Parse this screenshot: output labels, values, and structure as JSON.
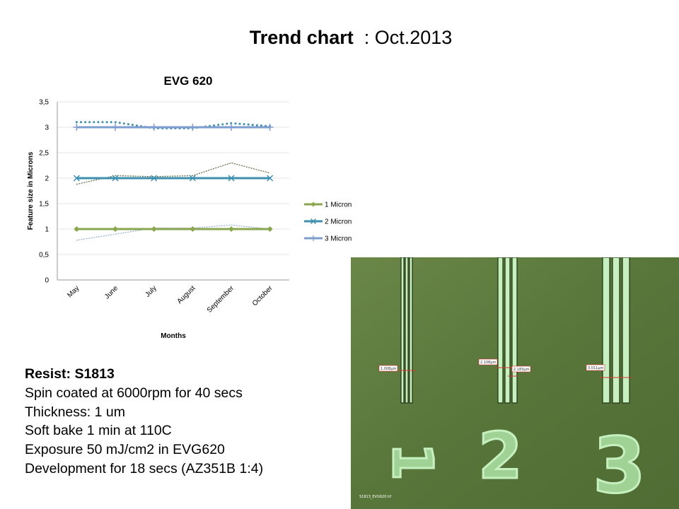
{
  "slide": {
    "title_bold": "Trend chart",
    "title_rest": "  : Oct.2013"
  },
  "chart_data": {
    "type": "line",
    "title": "EVG 620",
    "xlabel": "Months",
    "ylabel": "Feature size in Microns",
    "categories": [
      "May",
      "June",
      "July",
      "August",
      "September",
      "October"
    ],
    "ylim": [
      0,
      3.5
    ],
    "yticks": [
      "0",
      "0,5",
      "1",
      "1,5",
      "2",
      "2,5",
      "3",
      "3,5"
    ],
    "grid": true,
    "legend_position": "right",
    "series": [
      {
        "name": "1 Micron",
        "values": [
          1,
          1,
          1,
          1,
          1,
          1
        ],
        "color": "#8aa64f",
        "marker": "diamond"
      },
      {
        "name": "2 Micron",
        "values": [
          2,
          2,
          2,
          2,
          2,
          2
        ],
        "color": "#3d8fb0",
        "marker": "x"
      },
      {
        "name": "3 Micron",
        "values": [
          3,
          3,
          3,
          3,
          3,
          3
        ],
        "color": "#7f9ccf",
        "marker": "plus"
      }
    ],
    "trendlines": [
      {
        "values": [
          0.78,
          0.9,
          1.02,
          1.02,
          1.08,
          1.0
        ],
        "color": "#9fb3d9",
        "style": "dotted"
      },
      {
        "values": [
          1.88,
          2.05,
          2.03,
          2.05,
          2.3,
          2.1
        ],
        "color": "#6f6f4f",
        "style": "dotted"
      },
      {
        "values": [
          3.1,
          3.1,
          2.98,
          2.98,
          3.08,
          3.02
        ],
        "color": "#3d8fb0",
        "style": "dotted-thick"
      }
    ]
  },
  "notes": {
    "heading": "Resist: S1813",
    "lines": [
      "Spin coated at 6000rpm for 40 secs",
      "Thickness: 1 um",
      "Soft bake 1 min at 110C",
      "Exposure 50 mJ/cm2 in EVG620",
      "Development for 18 secs (AZ351B 1:4)"
    ]
  },
  "micrograph": {
    "labels": [
      "1.008µm",
      "2.108µm",
      "2.183µm",
      "3.011µm"
    ],
    "caption": "S1813_EVG620.tif",
    "digits": [
      "1",
      "2",
      "3"
    ],
    "colors": {
      "background": "#5f7c3e",
      "line": "#c6f0bf"
    }
  }
}
